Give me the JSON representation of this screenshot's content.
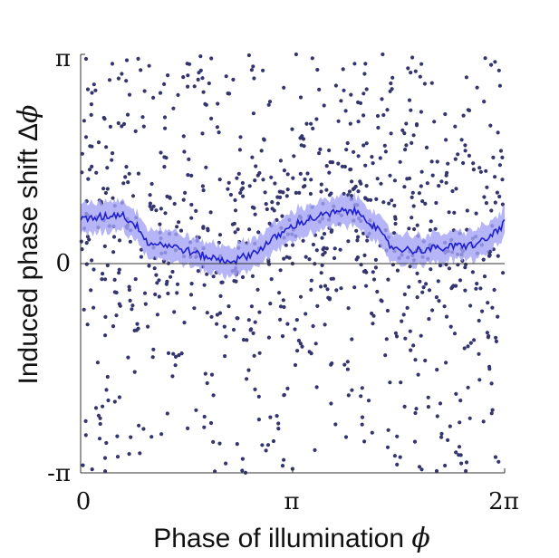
{
  "chart_data": {
    "type": "scatter",
    "title": "",
    "xlabel": "Phase of illumination",
    "xlabel_symbol": "ϕ",
    "ylabel": "Induced phase shift Δ",
    "ylabel_symbol": "ϕ",
    "xlim": [
      0,
      6.2832
    ],
    "ylim": [
      -3.1416,
      3.1416
    ],
    "x_ticks": [
      {
        "value": 0,
        "label": "0"
      },
      {
        "value": 3.1416,
        "label": "π"
      },
      {
        "value": 6.2832,
        "label": "2π"
      }
    ],
    "y_ticks": [
      {
        "value": 3.1416,
        "label": "π"
      },
      {
        "value": 0,
        "label": "0"
      },
      {
        "value": -3.1416,
        "label": "-π"
      }
    ],
    "reference_line_y": 0,
    "grid": false,
    "colors": {
      "points": "#34346e",
      "mean_line": "#1f1fd1",
      "band": "#a3a3f5",
      "axis": "#333333"
    },
    "mean_curve": {
      "x": [
        0.0,
        0.3,
        0.6,
        0.9,
        1.0,
        1.2,
        1.5,
        1.8,
        2.1,
        2.3,
        2.6,
        2.9,
        3.2,
        3.5,
        3.8,
        4.0,
        4.2,
        4.4,
        4.6,
        4.9,
        5.2,
        5.5,
        5.8,
        6.0,
        6.2832
      ],
      "y": [
        0.65,
        0.7,
        0.75,
        0.5,
        0.3,
        0.3,
        0.22,
        0.12,
        0.05,
        0.05,
        0.18,
        0.4,
        0.6,
        0.7,
        0.77,
        0.8,
        0.72,
        0.5,
        0.25,
        0.2,
        0.22,
        0.25,
        0.28,
        0.35,
        0.6
      ]
    },
    "band_halfwidth": 0.22,
    "scatter": {
      "n_points": 900,
      "distribution": "uniform in x over [0, 2π], y scattered over [-π, π] with concentration near the mean curve",
      "x": [
        0.08,
        0.15,
        0.22,
        0.31,
        0.4,
        0.47,
        0.55,
        0.66,
        0.74,
        0.83,
        0.92,
        1.05,
        1.12,
        1.24,
        1.33,
        1.41,
        1.52,
        1.63,
        1.71,
        1.82,
        1.94,
        2.03,
        2.15,
        2.28,
        2.37,
        2.49,
        2.58,
        2.7,
        2.81,
        2.93,
        3.02,
        3.14,
        3.26,
        3.35,
        3.47,
        3.59,
        3.68,
        3.79,
        3.9,
        4.02,
        4.11,
        4.22,
        4.33,
        4.45,
        4.56,
        4.66,
        4.77,
        4.89,
        4.98,
        5.1,
        5.21,
        5.33,
        5.44,
        5.53,
        5.64,
        5.76,
        5.87,
        5.98,
        6.09,
        6.2
      ],
      "y": [
        1.9,
        -0.4,
        2.6,
        0.9,
        -1.7,
        3.0,
        -2.9,
        1.3,
        0.5,
        -1.0,
        2.2,
        -2.6,
        0.8,
        1.6,
        -0.2,
        -1.4,
        2.8,
        0.1,
        -2.2,
        1.1,
        -0.8,
        2.4,
        -3.0,
        0.6,
        1.9,
        -1.6,
        0.3,
        2.9,
        -0.6,
        -2.4,
        1.4,
        0.0,
        -1.2,
        2.1,
        -2.8,
        0.9,
        1.7,
        -0.4,
        2.6,
        -1.9,
        0.4,
        3.0,
        -0.9,
        1.2,
        -2.5,
        0.7,
        2.0,
        -1.3,
        0.2,
        2.7,
        -0.7,
        -2.1,
        1.5,
        0.5,
        -3.0,
        2.3,
        -0.3,
        1.0,
        -1.8,
        2.9
      ]
    }
  }
}
